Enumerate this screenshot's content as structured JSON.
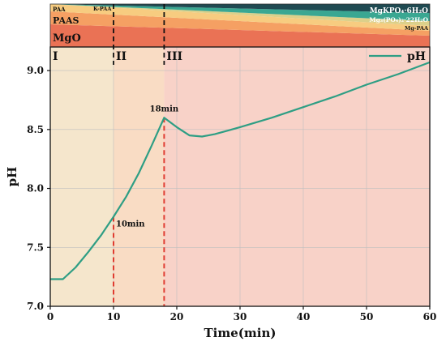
{
  "chart_data": {
    "type": "line",
    "xlabel": "Time(min)",
    "ylabel": "pH",
    "xlim": [
      0,
      60
    ],
    "ylim": [
      7.0,
      9.2
    ],
    "xticks": [
      "0",
      "10",
      "20",
      "30",
      "40",
      "50",
      "60"
    ],
    "yticks": [
      "7.0",
      "7.5",
      "8.0",
      "8.5",
      "9.0"
    ],
    "grid": true,
    "legend_position": "top-right",
    "series": [
      {
        "name": "pH",
        "color": "#2e9e84",
        "x": [
          0,
          2,
          4,
          6,
          8,
          10,
          12,
          14,
          16,
          18,
          20,
          22,
          24,
          26,
          28,
          30,
          35,
          40,
          45,
          50,
          55,
          60
        ],
        "y": [
          7.23,
          7.23,
          7.33,
          7.46,
          7.6,
          7.76,
          7.93,
          8.13,
          8.36,
          8.6,
          8.52,
          8.45,
          8.44,
          8.46,
          8.49,
          8.52,
          8.6,
          8.69,
          8.78,
          8.88,
          8.97,
          9.07
        ]
      }
    ],
    "regions": [
      {
        "label": "I",
        "x_start": 0,
        "x_end": 10,
        "color": "#f5e6cc"
      },
      {
        "label": "II",
        "x_start": 10,
        "x_end": 18,
        "color": "#f9dcc4"
      },
      {
        "label": "III",
        "x_start": 18,
        "x_end": 60,
        "color": "#f8d2c8"
      }
    ],
    "markers": [
      {
        "x": 10,
        "label": "10min",
        "color": "#e03c31"
      },
      {
        "x": 18,
        "label": "18min",
        "color": "#e03c31"
      }
    ],
    "composition_bands": {
      "left_labels": [
        "PAA",
        "K-PAA",
        "PAAS",
        "MgO"
      ],
      "right_labels": [
        "MgKPO₄·6H₂O",
        "Mg₃(PO₄)₂·22H₂O",
        "Mg-PAA"
      ],
      "colors": {
        "mgo": "#ea7255",
        "paas": "#f5a063",
        "paa": "#f7cc80",
        "mg_paa": "#dcd08a",
        "mg3po4": "#3aa792",
        "mgkpo4": "#1f4a52"
      }
    }
  }
}
